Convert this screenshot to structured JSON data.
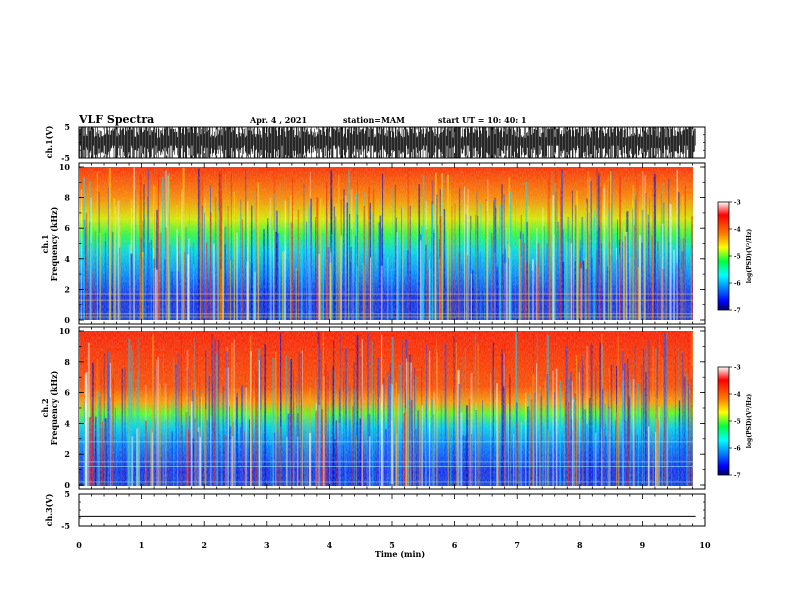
{
  "title": "VLF Spectra",
  "date": "Apr. 4  , 2021",
  "station": "station=MAM",
  "start_ut": "start  UT =   10: 40: 1",
  "chart_data": [
    {
      "type": "line",
      "name": "ch1-waveform",
      "ylabel": "ch.1(V)",
      "ylim": [
        -5,
        5
      ],
      "yticks": [
        "5",
        "-5"
      ],
      "xlim": [
        0,
        10
      ],
      "description_values": "dense impulsive waveform, spikes spanning about -5 to 5 V"
    },
    {
      "type": "heatmap",
      "name": "ch1-spectrogram",
      "ylabel": "ch.1\nFrequency (kHz)",
      "ylabel_lines": [
        "ch.1",
        "Frequency (kHz)"
      ],
      "ylim": [
        0,
        10
      ],
      "yticks": [
        "0",
        "2",
        "4",
        "6",
        "8",
        "10"
      ],
      "xlim": [
        0,
        9.85
      ],
      "colorbar": {
        "label": "log(PSD)(V²/Hz)",
        "range": [
          -7,
          -3
        ],
        "ticks": [
          "-3",
          "-4",
          "-5",
          "-6",
          "-7"
        ]
      },
      "bands": [
        {
          "freq_khz": [
            0,
            1.5
          ],
          "log_psd": -6.4
        },
        {
          "freq_khz": [
            1.5,
            4.5
          ],
          "log_psd": -5.9
        },
        {
          "freq_khz": [
            4.5,
            6.5
          ],
          "log_psd": -4.9
        },
        {
          "freq_khz": [
            6.5,
            10
          ],
          "log_psd": -3.6
        }
      ]
    },
    {
      "type": "heatmap",
      "name": "ch2-spectrogram",
      "ylabel": "ch.2\nFrequency (kHz)",
      "ylabel_lines": [
        "ch.2",
        "Frequency (kHz)"
      ],
      "ylim": [
        0,
        10
      ],
      "yticks": [
        "0",
        "2",
        "4",
        "6",
        "8",
        "10"
      ],
      "xlim": [
        0,
        9.85
      ],
      "colorbar": {
        "label": "log(PSD)(V²/Hz)",
        "range": [
          -7,
          -3
        ],
        "ticks": [
          "-3",
          "-4",
          "-5",
          "-6",
          "-7"
        ]
      },
      "bands": [
        {
          "freq_khz": [
            0,
            3.5
          ],
          "log_psd": -6.3
        },
        {
          "freq_khz": [
            3.5,
            5.0
          ],
          "log_psd": -5.0
        },
        {
          "freq_khz": [
            5.0,
            10
          ],
          "log_psd": -3.3
        }
      ]
    },
    {
      "type": "line",
      "name": "ch3-waveform",
      "ylabel": "ch.3(V)",
      "ylim": [
        -5,
        5
      ],
      "yticks": [
        "5",
        "-5"
      ],
      "xlim": [
        0,
        10
      ],
      "xlabel": "Time (min)",
      "xticks": [
        "0",
        "1",
        "2",
        "3",
        "4",
        "5",
        "6",
        "7",
        "8",
        "9",
        "10"
      ],
      "x": [
        0,
        9.85
      ],
      "y": [
        -2,
        -2
      ]
    }
  ],
  "colors": {
    "colormap": [
      "#000080",
      "#0000ff",
      "#0080ff",
      "#00ffff",
      "#40ff80",
      "#80ff00",
      "#ffff00",
      "#ff8000",
      "#ff0000",
      "#ffffff"
    ]
  }
}
